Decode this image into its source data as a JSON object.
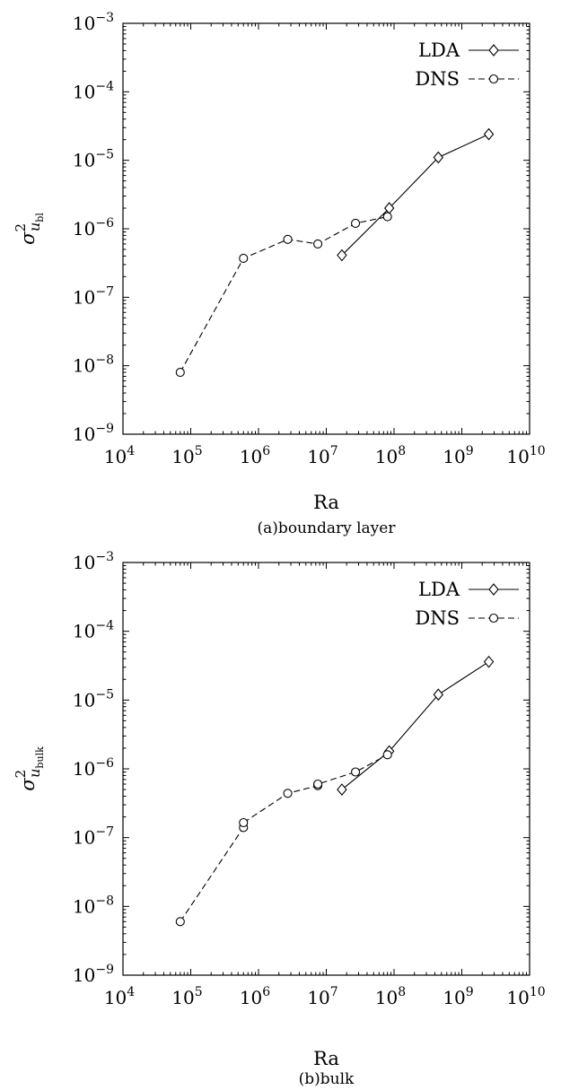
{
  "chart_data": [
    {
      "type": "line",
      "caption": "(a)boundary layer",
      "xlabel": "Ra",
      "ylabel_base": "σ",
      "ylabel_sup": "2",
      "ylabel_sub_var": "u",
      "ylabel_sub_sub": "bl",
      "x_scale": "log",
      "y_scale": "log",
      "xlim": [
        10000,
        10000000000
      ],
      "ylim": [
        1e-09,
        0.001
      ],
      "x_ticks": [
        {
          "value": 10000,
          "base": "10",
          "exp": "4"
        },
        {
          "value": 100000,
          "base": "10",
          "exp": "5"
        },
        {
          "value": 1000000,
          "base": "10",
          "exp": "6"
        },
        {
          "value": 10000000,
          "base": "10",
          "exp": "7"
        },
        {
          "value": 100000000,
          "base": "10",
          "exp": "8"
        },
        {
          "value": 1000000000,
          "base": "10",
          "exp": "9"
        },
        {
          "value": 10000000000,
          "base": "10",
          "exp": "10"
        }
      ],
      "y_ticks": [
        {
          "value": 1e-09,
          "base": "10",
          "exp": "−9"
        },
        {
          "value": 1e-08,
          "base": "10",
          "exp": "−8"
        },
        {
          "value": 1e-07,
          "base": "10",
          "exp": "−7"
        },
        {
          "value": 1e-06,
          "base": "10",
          "exp": "−6"
        },
        {
          "value": 1e-05,
          "base": "10",
          "exp": "−5"
        },
        {
          "value": 0.0001,
          "base": "10",
          "exp": "−4"
        },
        {
          "value": 0.001,
          "base": "10",
          "exp": "−3"
        }
      ],
      "legend_position": "top-right",
      "grid": false,
      "series": [
        {
          "name": "LDA",
          "marker": "diamond",
          "line": "solid",
          "x": [
            17000000,
            85000000,
            450000000,
            2500000000
          ],
          "y": [
            4.1e-07,
            2e-06,
            1.1e-05,
            2.4e-05
          ]
        },
        {
          "name": "DNS",
          "marker": "circle",
          "line": "dashed",
          "x": [
            70000,
            600000,
            2700000,
            7500000,
            27000000,
            80000000
          ],
          "y": [
            8e-09,
            3.7e-07,
            7e-07,
            6e-07,
            1.2e-06,
            1.5e-06
          ]
        }
      ]
    },
    {
      "type": "line",
      "caption": "(b)bulk",
      "xlabel": "Ra",
      "ylabel_base": "σ",
      "ylabel_sup": "2",
      "ylabel_sub_var": "u",
      "ylabel_sub_sub": "bulk",
      "x_scale": "log",
      "y_scale": "log",
      "xlim": [
        10000,
        10000000000
      ],
      "ylim": [
        1e-09,
        0.001
      ],
      "x_ticks": [
        {
          "value": 10000,
          "base": "10",
          "exp": "4"
        },
        {
          "value": 100000,
          "base": "10",
          "exp": "5"
        },
        {
          "value": 1000000,
          "base": "10",
          "exp": "6"
        },
        {
          "value": 10000000,
          "base": "10",
          "exp": "7"
        },
        {
          "value": 100000000,
          "base": "10",
          "exp": "8"
        },
        {
          "value": 1000000000,
          "base": "10",
          "exp": "9"
        },
        {
          "value": 10000000000,
          "base": "10",
          "exp": "10"
        }
      ],
      "y_ticks": [
        {
          "value": 1e-09,
          "base": "10",
          "exp": "−9"
        },
        {
          "value": 1e-08,
          "base": "10",
          "exp": "−8"
        },
        {
          "value": 1e-07,
          "base": "10",
          "exp": "−7"
        },
        {
          "value": 1e-06,
          "base": "10",
          "exp": "−6"
        },
        {
          "value": 1e-05,
          "base": "10",
          "exp": "−5"
        },
        {
          "value": 0.0001,
          "base": "10",
          "exp": "−4"
        },
        {
          "value": 0.001,
          "base": "10",
          "exp": "−3"
        }
      ],
      "legend_position": "top-right",
      "grid": false,
      "series": [
        {
          "name": "LDA",
          "marker": "diamond",
          "line": "solid",
          "x": [
            17000000,
            85000000,
            450000000,
            2500000000
          ],
          "y": [
            5e-07,
            1.8e-06,
            1.2e-05,
            3.6e-05
          ]
        },
        {
          "name": "DNS",
          "marker": "circle",
          "line": "dashed",
          "x": [
            70000,
            600000,
            600000,
            2700000,
            7500000,
            7500000,
            27000000,
            80000000
          ],
          "y": [
            6e-09,
            1.4e-07,
            1.65e-07,
            4.4e-07,
            5.7e-07,
            6e-07,
            9e-07,
            1.6e-06
          ]
        }
      ]
    }
  ]
}
